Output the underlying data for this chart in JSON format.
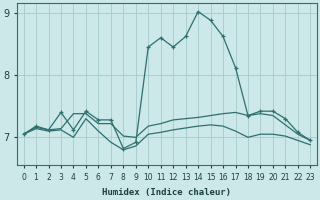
{
  "xlabel": "Humidex (Indice chaleur)",
  "bg_color": "#cce8e8",
  "grid_color": "#aacece",
  "line_color": "#2d7070",
  "xlim": [
    -0.5,
    23.5
  ],
  "ylim": [
    6.55,
    9.15
  ],
  "yticks": [
    7,
    8,
    9
  ],
  "xticks": [
    0,
    1,
    2,
    3,
    4,
    5,
    6,
    7,
    8,
    9,
    10,
    11,
    12,
    13,
    14,
    15,
    16,
    17,
    18,
    19,
    20,
    21,
    22,
    23
  ],
  "series_main": [
    7.05,
    7.18,
    7.12,
    7.4,
    7.12,
    7.42,
    7.28,
    7.28,
    6.82,
    6.92,
    8.45,
    8.6,
    8.45,
    8.62,
    9.02,
    8.88,
    8.62,
    8.12,
    7.35,
    7.42,
    7.42,
    7.3,
    7.08,
    6.95
  ],
  "series_flat": [
    7.05,
    7.16,
    7.12,
    7.14,
    7.38,
    7.38,
    7.22,
    7.22,
    7.02,
    7.0,
    7.18,
    7.22,
    7.28,
    7.3,
    7.32,
    7.35,
    7.38,
    7.4,
    7.35,
    7.38,
    7.35,
    7.2,
    7.05,
    6.95
  ],
  "series_lower": [
    7.05,
    7.14,
    7.1,
    7.12,
    7.0,
    7.3,
    7.1,
    6.92,
    6.8,
    6.86,
    7.05,
    7.08,
    7.12,
    7.15,
    7.18,
    7.2,
    7.18,
    7.1,
    7.0,
    7.05,
    7.05,
    7.02,
    6.95,
    6.88
  ]
}
